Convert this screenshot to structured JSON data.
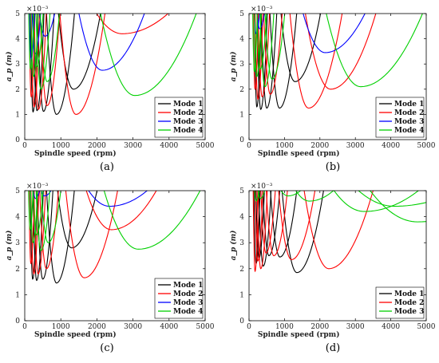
{
  "chart_data": [
    {
      "type": "line",
      "caption": "(a)",
      "xlabel": "Spindle speed (rpm)",
      "ylabel": "a_p (m)",
      "y_exponent": "×10⁻³",
      "xlim": [
        0,
        5000
      ],
      "ylim": [
        0,
        5
      ],
      "xticks": [
        0,
        1000,
        2000,
        3000,
        4000,
        5000
      ],
      "yticks": [
        0,
        1,
        2,
        3,
        4,
        5
      ],
      "legend": "bottom-right",
      "grid": false,
      "series": [
        {
          "name": "Mode 1",
          "color": "#000000",
          "minima": [
            [
              230,
              1.1
            ],
            [
              340,
              1.15
            ],
            [
              520,
              1.12
            ],
            [
              880,
              1.0
            ],
            [
              1350,
              2.0
            ]
          ]
        },
        {
          "name": "Mode 2",
          "color": "#ff0000",
          "minima": [
            [
              180,
              1.7
            ],
            [
              260,
              1.3
            ],
            [
              380,
              1.2
            ],
            [
              620,
              1.35
            ],
            [
              1420,
              1.0
            ],
            [
              2700,
              4.2
            ]
          ]
        },
        {
          "name": "Mode 3",
          "color": "#0000ff",
          "minima": [
            [
              180,
              3.2
            ],
            [
              290,
              3.4
            ],
            [
              560,
              4.1
            ],
            [
              2150,
              2.75
            ]
          ]
        },
        {
          "name": "Mode 4",
          "color": "#00d000",
          "minima": [
            [
              160,
              2.8
            ],
            [
              240,
              2.5
            ],
            [
              330,
              2.9
            ],
            [
              450,
              2.0
            ],
            [
              620,
              2.3
            ],
            [
              3050,
              1.75
            ]
          ]
        }
      ]
    },
    {
      "type": "line",
      "caption": "(b)",
      "xlabel": "Spindle speed (rpm)",
      "ylabel": "a_p (m)",
      "y_exponent": "×10⁻³",
      "xlim": [
        0,
        5000
      ],
      "ylim": [
        0,
        5
      ],
      "xticks": [
        0,
        1000,
        2000,
        3000,
        4000,
        5000
      ],
      "yticks": [
        0,
        1,
        2,
        3,
        4,
        5
      ],
      "legend": "bottom-right",
      "grid": false,
      "series": [
        {
          "name": "Mode 1",
          "color": "#000000",
          "minima": [
            [
              220,
              1.3
            ],
            [
              330,
              1.2
            ],
            [
              500,
              1.25
            ],
            [
              860,
              1.25
            ],
            [
              1300,
              2.3
            ]
          ]
        },
        {
          "name": "Mode 2",
          "color": "#ff0000",
          "minima": [
            [
              170,
              2.0
            ],
            [
              250,
              1.6
            ],
            [
              370,
              1.7
            ],
            [
              600,
              1.8
            ],
            [
              1680,
              1.25
            ],
            [
              2300,
              2.0
            ]
          ]
        },
        {
          "name": "Mode 3",
          "color": "#0000ff",
          "minima": [
            [
              200,
              4.2
            ],
            [
              300,
              4.4
            ],
            [
              2150,
              3.45
            ]
          ]
        },
        {
          "name": "Mode 4",
          "color": "#00d000",
          "minima": [
            [
              150,
              2.7
            ],
            [
              220,
              2.5
            ],
            [
              320,
              2.8
            ],
            [
              450,
              2.1
            ],
            [
              650,
              2.4
            ],
            [
              3150,
              2.1
            ]
          ]
        }
      ]
    },
    {
      "type": "line",
      "caption": "(c)",
      "xlabel": "Spindle speed (rpm)",
      "ylabel": "a_p (m)",
      "y_exponent": "×10⁻³",
      "xlim": [
        0,
        5000
      ],
      "ylim": [
        0,
        5
      ],
      "xticks": [
        0,
        1000,
        2000,
        3000,
        4000,
        5000
      ],
      "yticks": [
        0,
        1,
        2,
        3,
        4,
        5
      ],
      "legend": "bottom-right",
      "grid": false,
      "series": [
        {
          "name": "Mode 1",
          "color": "#000000",
          "minima": [
            [
              220,
              1.6
            ],
            [
              330,
              1.55
            ],
            [
              500,
              1.6
            ],
            [
              880,
              1.45
            ],
            [
              1300,
              2.8
            ]
          ]
        },
        {
          "name": "Mode 2",
          "color": "#ff0000",
          "minima": [
            [
              170,
              2.2
            ],
            [
              250,
              1.8
            ],
            [
              370,
              1.8
            ],
            [
              600,
              2.0
            ],
            [
              1650,
              1.65
            ],
            [
              2400,
              3.5
            ]
          ]
        },
        {
          "name": "Mode 3",
          "color": "#0000ff",
          "minima": [
            [
              300,
              4.7
            ],
            [
              550,
              4.8
            ],
            [
              2350,
              4.4
            ]
          ]
        },
        {
          "name": "Mode 4",
          "color": "#00d000",
          "minima": [
            [
              150,
              3.5
            ],
            [
              230,
              3.0
            ],
            [
              330,
              3.3
            ],
            [
              450,
              2.7
            ],
            [
              650,
              3.0
            ],
            [
              3150,
              2.75
            ]
          ]
        }
      ]
    },
    {
      "type": "line",
      "caption": "(d)",
      "xlabel": "Spindle speed (rpm)",
      "ylabel": "a_p (m)",
      "y_exponent": "×10⁻³",
      "xlim": [
        0,
        5000
      ],
      "ylim": [
        0,
        5
      ],
      "xticks": [
        0,
        1000,
        2000,
        3000,
        4000,
        5000
      ],
      "yticks": [
        0,
        1,
        2,
        3,
        4,
        5
      ],
      "legend": "bottom-right",
      "grid": false,
      "series": [
        {
          "name": "Mode 1",
          "color": "#000000",
          "minima": [
            [
              200,
              2.2
            ],
            [
              280,
              2.4
            ],
            [
              400,
              2.1
            ],
            [
              560,
              2.5
            ],
            [
              870,
              2.45
            ],
            [
              1350,
              1.85
            ]
          ]
        },
        {
          "name": "Mode 2",
          "color": "#ff0000",
          "minima": [
            [
              170,
              1.9
            ],
            [
              250,
              2.3
            ],
            [
              330,
              2.0
            ],
            [
              480,
              2.6
            ],
            [
              700,
              2.5
            ],
            [
              1200,
              2.35
            ],
            [
              2250,
              2.0
            ]
          ]
        },
        {
          "name": "Mode 3",
          "color": "#00d000",
          "minima": [
            [
              200,
              4.6
            ],
            [
              320,
              4.7
            ],
            [
              1100,
              4.8
            ],
            [
              1700,
              4.6
            ],
            [
              3250,
              4.2
            ],
            [
              4100,
              4.4
            ],
            [
              4750,
              3.8
            ]
          ]
        }
      ]
    }
  ]
}
